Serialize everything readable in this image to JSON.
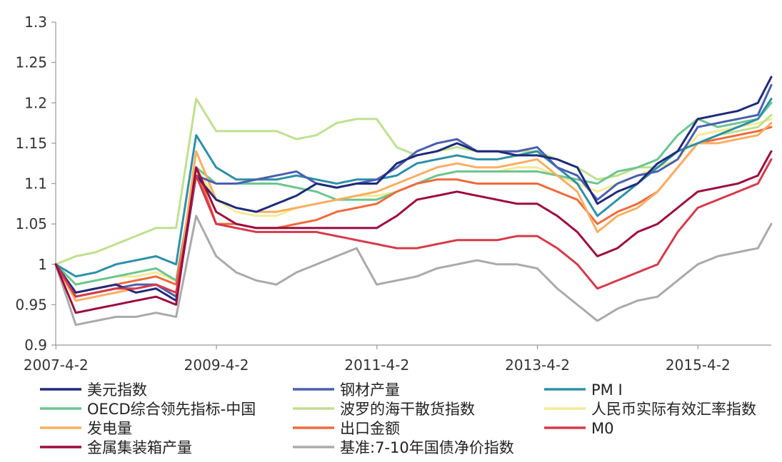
{
  "chart_data": {
    "type": "line",
    "title": "",
    "xlabel": "",
    "ylabel": "",
    "x_start": "2007-4-2",
    "x_end": "2016-3-31",
    "xticks": [
      "2007-4-2",
      "2009-4-2",
      "2011-4-2",
      "2013-4-2",
      "2015-4-2"
    ],
    "ylim": [
      0.9,
      1.3
    ],
    "yticks": [
      "0.9",
      "0.95",
      "1",
      "1.05",
      "1.1",
      "1.15",
      "1.2",
      "1.25",
      "1.3"
    ],
    "legend_position": "bottom",
    "x": [
      "2007-04",
      "2007-07",
      "2007-10",
      "2008-01",
      "2008-04",
      "2008-07",
      "2008-10",
      "2009-01",
      "2009-04",
      "2009-07",
      "2009-10",
      "2010-01",
      "2010-04",
      "2010-07",
      "2010-10",
      "2011-01",
      "2011-04",
      "2011-07",
      "2011-10",
      "2012-01",
      "2012-04",
      "2012-07",
      "2012-10",
      "2013-01",
      "2013-04",
      "2013-07",
      "2013-10",
      "2014-01",
      "2014-04",
      "2014-07",
      "2014-10",
      "2015-01",
      "2015-04",
      "2015-07",
      "2015-10",
      "2016-01",
      "2016-03"
    ],
    "series": [
      {
        "name": "美元指数",
        "color": "#1f2a7a",
        "values": [
          1.0,
          0.965,
          0.97,
          0.975,
          0.965,
          0.97,
          0.955,
          1.11,
          1.08,
          1.07,
          1.065,
          1.075,
          1.085,
          1.1,
          1.095,
          1.1,
          1.1,
          1.125,
          1.135,
          1.14,
          1.15,
          1.14,
          1.14,
          1.135,
          1.135,
          1.13,
          1.12,
          1.075,
          1.09,
          1.1,
          1.125,
          1.14,
          1.18,
          1.185,
          1.19,
          1.2,
          1.232
        ]
      },
      {
        "name": "钢材产量",
        "color": "#4a5fb0",
        "values": [
          1.0,
          0.96,
          0.965,
          0.97,
          0.975,
          0.975,
          0.96,
          1.11,
          1.1,
          1.1,
          1.105,
          1.11,
          1.115,
          1.1,
          1.095,
          1.1,
          1.105,
          1.12,
          1.14,
          1.15,
          1.155,
          1.14,
          1.14,
          1.14,
          1.145,
          1.12,
          1.11,
          1.08,
          1.1,
          1.11,
          1.115,
          1.13,
          1.17,
          1.175,
          1.18,
          1.185,
          1.222
        ]
      },
      {
        "name": "PM I",
        "color": "#2e8fa8",
        "values": [
          1.0,
          0.985,
          0.99,
          1.0,
          1.005,
          1.01,
          1.0,
          1.16,
          1.12,
          1.105,
          1.105,
          1.105,
          1.11,
          1.105,
          1.1,
          1.105,
          1.105,
          1.11,
          1.125,
          1.13,
          1.135,
          1.13,
          1.13,
          1.135,
          1.14,
          1.12,
          1.1,
          1.06,
          1.08,
          1.1,
          1.12,
          1.14,
          1.15,
          1.16,
          1.17,
          1.18,
          1.205
        ]
      },
      {
        "name": "OECD综合领先指标-中国",
        "color": "#6cc58f",
        "values": [
          1.0,
          0.975,
          0.98,
          0.985,
          0.99,
          0.995,
          0.98,
          1.12,
          1.1,
          1.1,
          1.1,
          1.1,
          1.095,
          1.09,
          1.08,
          1.08,
          1.08,
          1.09,
          1.1,
          1.11,
          1.115,
          1.115,
          1.115,
          1.115,
          1.115,
          1.11,
          1.105,
          1.1,
          1.115,
          1.12,
          1.13,
          1.16,
          1.18,
          1.17,
          1.175,
          1.18,
          1.2
        ]
      },
      {
        "name": "波罗的海干散货指数",
        "color": "#bfe08f",
        "values": [
          1.0,
          1.01,
          1.015,
          1.025,
          1.035,
          1.045,
          1.045,
          1.205,
          1.165,
          1.165,
          1.165,
          1.165,
          1.155,
          1.16,
          1.175,
          1.18,
          1.18,
          1.145,
          1.135,
          1.14,
          1.145,
          1.14,
          1.14,
          1.14,
          1.14,
          1.13,
          1.12,
          1.105,
          1.11,
          1.12,
          1.12,
          1.14,
          1.15,
          1.16,
          1.165,
          1.17,
          1.185
        ]
      },
      {
        "name": "人民币实际有效汇率指数",
        "color": "#f5ea96",
        "values": [
          1.0,
          0.975,
          0.98,
          0.985,
          0.985,
          0.99,
          0.98,
          1.12,
          1.08,
          1.065,
          1.06,
          1.06,
          1.07,
          1.075,
          1.08,
          1.085,
          1.085,
          1.09,
          1.1,
          1.11,
          1.115,
          1.115,
          1.115,
          1.12,
          1.12,
          1.11,
          1.1,
          1.09,
          1.1,
          1.11,
          1.12,
          1.13,
          1.16,
          1.165,
          1.17,
          1.175,
          1.18
        ]
      },
      {
        "name": "发电量",
        "color": "#f9ae62",
        "values": [
          1.0,
          0.955,
          0.96,
          0.965,
          0.97,
          0.975,
          0.96,
          1.14,
          1.08,
          1.07,
          1.065,
          1.065,
          1.07,
          1.075,
          1.08,
          1.085,
          1.09,
          1.1,
          1.11,
          1.12,
          1.125,
          1.12,
          1.12,
          1.125,
          1.13,
          1.11,
          1.09,
          1.04,
          1.06,
          1.07,
          1.09,
          1.12,
          1.15,
          1.15,
          1.155,
          1.16,
          1.175
        ]
      },
      {
        "name": "出口金额",
        "color": "#ef6a3c",
        "values": [
          1.0,
          0.965,
          0.97,
          0.975,
          0.98,
          0.985,
          0.975,
          1.12,
          1.05,
          1.05,
          1.045,
          1.045,
          1.05,
          1.055,
          1.065,
          1.07,
          1.075,
          1.09,
          1.1,
          1.105,
          1.105,
          1.1,
          1.1,
          1.1,
          1.1,
          1.09,
          1.08,
          1.05,
          1.065,
          1.075,
          1.09,
          1.12,
          1.15,
          1.155,
          1.16,
          1.165,
          1.17
        ]
      },
      {
        "name": "M0",
        "color": "#d63a4a",
        "values": [
          1.0,
          0.96,
          0.965,
          0.97,
          0.97,
          0.975,
          0.965,
          1.11,
          1.05,
          1.045,
          1.04,
          1.04,
          1.04,
          1.04,
          1.035,
          1.03,
          1.025,
          1.02,
          1.02,
          1.025,
          1.03,
          1.03,
          1.03,
          1.035,
          1.035,
          1.02,
          1.0,
          0.97,
          0.98,
          0.99,
          1.0,
          1.04,
          1.07,
          1.08,
          1.09,
          1.1,
          1.13
        ]
      },
      {
        "name": "金属集装箱产量",
        "color": "#9c0d3f",
        "values": [
          1.0,
          0.94,
          0.945,
          0.95,
          0.955,
          0.96,
          0.95,
          1.12,
          1.065,
          1.05,
          1.045,
          1.045,
          1.045,
          1.045,
          1.045,
          1.045,
          1.045,
          1.06,
          1.08,
          1.085,
          1.09,
          1.085,
          1.08,
          1.075,
          1.075,
          1.06,
          1.04,
          1.01,
          1.02,
          1.04,
          1.05,
          1.07,
          1.09,
          1.095,
          1.1,
          1.11,
          1.14
        ]
      },
      {
        "name": "基准:7-10年国债净价指数",
        "color": "#aaaaaa",
        "values": [
          1.0,
          0.925,
          0.93,
          0.935,
          0.935,
          0.94,
          0.935,
          1.06,
          1.01,
          0.99,
          0.98,
          0.975,
          0.99,
          1.0,
          1.01,
          1.02,
          0.975,
          0.98,
          0.985,
          0.995,
          1.0,
          1.005,
          1.0,
          1.0,
          0.995,
          0.97,
          0.95,
          0.93,
          0.945,
          0.955,
          0.96,
          0.98,
          1.0,
          1.01,
          1.015,
          1.02,
          1.05
        ]
      }
    ]
  }
}
